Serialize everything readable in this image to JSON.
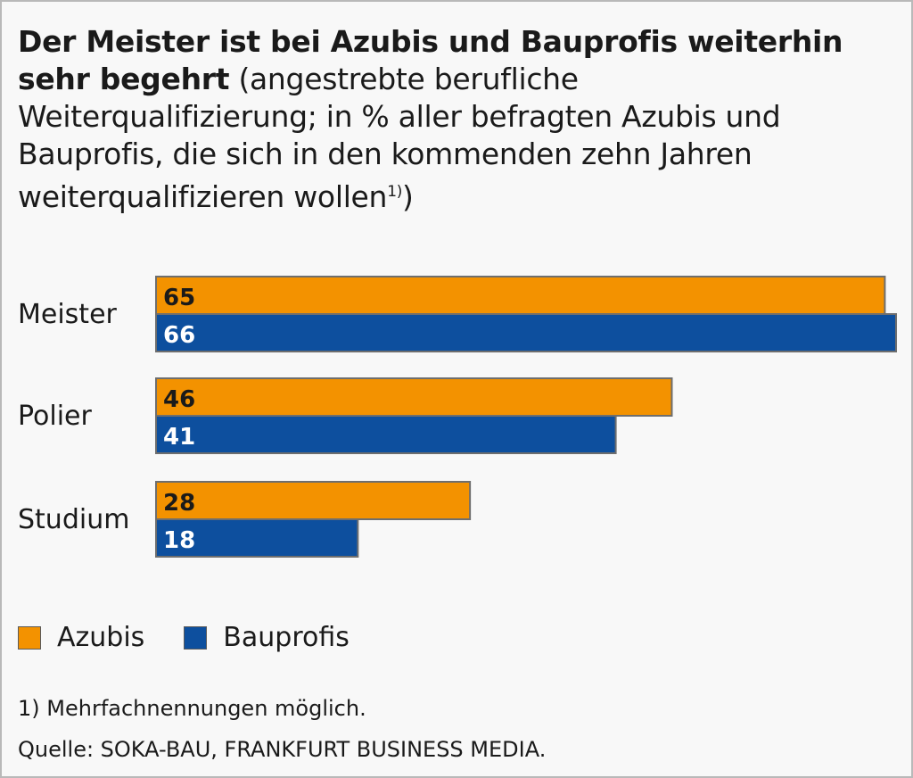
{
  "title": {
    "bold": "Der Meister ist bei Azubis und Bauprofis weiterhin sehr begehrt",
    "rest": "(angestrebte berufliche Weiterqualifizierung; in % aller befragten Azubis und Bauprofis, die sich in den kommenden zehn Jahren weiterqualifizieren wollen",
    "footnote_marker": "1)",
    "closing": ")"
  },
  "colors": {
    "azubis": "#f39200",
    "bauprofis": "#0d4f9e",
    "azubis_label": "#1a1a1a",
    "bauprofis_label": "#ffffff",
    "bar_border": "#6e6e6e"
  },
  "chart_data": {
    "type": "bar",
    "orientation": "horizontal",
    "categories": [
      "Meister",
      "Polier",
      "Studium"
    ],
    "series": [
      {
        "name": "Azubis",
        "values": [
          65,
          46,
          28
        ]
      },
      {
        "name": "Bauprofis",
        "values": [
          66,
          41,
          18
        ]
      }
    ],
    "xlim": [
      0,
      66
    ],
    "grid": false,
    "legend_position": "bottom-left",
    "data_labels": true
  },
  "legend": {
    "azubis": "Azubis",
    "bauprofis": "Bauprofis"
  },
  "footnote": "1)  Mehrfachnennungen möglich.",
  "source": "Quelle: SOKA-BAU, FRANKFURT BUSINESS MEDIA."
}
